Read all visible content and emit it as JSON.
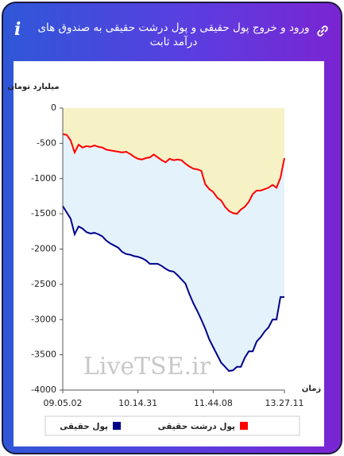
{
  "header": {
    "title": "ورود و خروج پول حقیقی و پول درشت حقیقی به صندوق های درآمد ثابت"
  },
  "chart_data": {
    "type": "area-line",
    "y_label": "میلیارد تومان",
    "x_label": "زمان",
    "watermark": "LiveTSE.ir",
    "categories": [
      "09.05.02",
      null,
      null,
      null,
      null,
      null,
      null,
      null,
      null,
      null,
      null,
      null,
      null,
      null,
      null,
      null,
      null,
      null,
      null,
      "10.14.31",
      null,
      null,
      null,
      null,
      null,
      null,
      null,
      null,
      null,
      null,
      null,
      null,
      null,
      null,
      null,
      null,
      null,
      null,
      "11.44.08",
      null,
      null,
      null,
      null,
      null,
      null,
      null,
      null,
      null,
      null,
      null,
      null,
      null,
      null,
      null,
      null,
      null,
      "13.27.11"
    ],
    "ylim": [
      -4000,
      0
    ],
    "yticks": [
      0,
      -500,
      -1000,
      -1500,
      -2000,
      -2500,
      -3000,
      -3500,
      -4000
    ],
    "grid": false,
    "series": [
      {
        "name": "پول درشت حقیقی",
        "color": "#ff0000",
        "fill": "#f7f1c6",
        "values": [
          -370,
          -380,
          -460,
          -630,
          -520,
          -560,
          -540,
          -550,
          -530,
          -550,
          -560,
          -590,
          -600,
          -610,
          -620,
          -630,
          -620,
          -650,
          -690,
          -720,
          -730,
          -710,
          -700,
          -660,
          -700,
          -740,
          -770,
          -720,
          -740,
          -730,
          -740,
          -790,
          -830,
          -860,
          -870,
          -890,
          -1080,
          -1150,
          -1190,
          -1270,
          -1310,
          -1400,
          -1460,
          -1490,
          -1500,
          -1440,
          -1400,
          -1330,
          -1220,
          -1170,
          -1170,
          -1150,
          -1130,
          -1090,
          -1130,
          -990,
          -710
        ]
      },
      {
        "name": "پول حقیقی",
        "color": "#00008b",
        "fill": "#e4f2fb",
        "values": [
          -1390,
          -1480,
          -1570,
          -1790,
          -1680,
          -1710,
          -1760,
          -1780,
          -1770,
          -1790,
          -1820,
          -1880,
          -1920,
          -1950,
          -1980,
          -2040,
          -2070,
          -2080,
          -2100,
          -2110,
          -2130,
          -2160,
          -2210,
          -2210,
          -2210,
          -2240,
          -2280,
          -2310,
          -2320,
          -2370,
          -2430,
          -2490,
          -2640,
          -2770,
          -2880,
          -3000,
          -3130,
          -3280,
          -3390,
          -3500,
          -3610,
          -3670,
          -3730,
          -3720,
          -3670,
          -3670,
          -3540,
          -3450,
          -3450,
          -3310,
          -3250,
          -3170,
          -3110,
          -3000,
          -3000,
          -2680,
          -2680
        ]
      }
    ]
  }
}
